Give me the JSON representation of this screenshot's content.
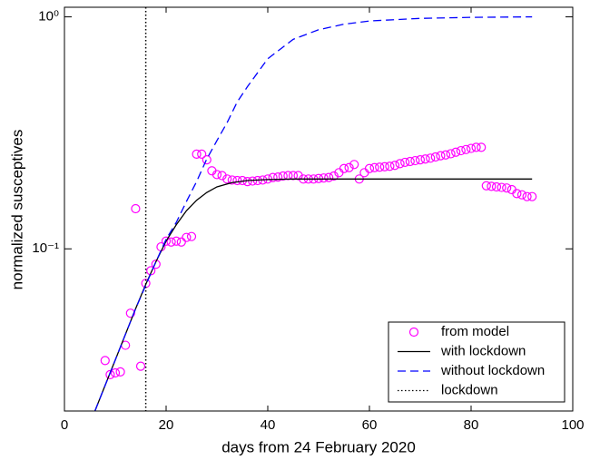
{
  "chart_data": {
    "type": "line",
    "xlabel": "days from 24 February 2020",
    "ylabel": "normalized susceptives",
    "xlim": [
      0,
      100
    ],
    "xticks": [
      0,
      20,
      40,
      60,
      80,
      100
    ],
    "ylim": [
      0.02,
      1.1
    ],
    "log_y": true,
    "yticks": [
      {
        "value": 0.1,
        "label": "10⁻¹"
      },
      {
        "value": 1,
        "label": "10⁰"
      }
    ],
    "legend": "lower right",
    "series": [
      {
        "name": "from model",
        "color": "#ff00ff",
        "marker": "circle",
        "x": [
          8,
          9,
          10,
          11,
          12,
          13,
          14,
          15,
          16,
          17,
          18,
          19,
          20,
          21,
          22,
          23,
          24,
          25,
          26,
          27,
          28,
          29,
          30,
          31,
          32,
          33,
          34,
          35,
          36,
          37,
          38,
          39,
          40,
          41,
          42,
          43,
          44,
          45,
          46,
          47,
          48,
          49,
          50,
          51,
          52,
          53,
          54,
          55,
          56,
          57,
          58,
          59,
          60,
          61,
          62,
          63,
          64,
          65,
          66,
          67,
          68,
          69,
          70,
          71,
          72,
          73,
          74,
          75,
          76,
          77,
          78,
          79,
          80,
          81,
          82,
          83,
          84,
          85,
          86,
          87,
          88,
          89,
          90,
          91,
          92
        ],
        "values": [
          0.033,
          0.0287,
          0.0292,
          0.0295,
          0.0384,
          0.0528,
          0.149,
          0.0312,
          0.071,
          0.0805,
          0.0858,
          0.102,
          0.108,
          0.107,
          0.108,
          0.107,
          0.112,
          0.113,
          0.256,
          0.256,
          0.242,
          0.217,
          0.209,
          0.207,
          0.2,
          0.198,
          0.197,
          0.197,
          0.195,
          0.196,
          0.197,
          0.198,
          0.2,
          0.203,
          0.204,
          0.206,
          0.207,
          0.207,
          0.207,
          0.2,
          0.2,
          0.2,
          0.201,
          0.202,
          0.203,
          0.206,
          0.213,
          0.222,
          0.224,
          0.231,
          0.2,
          0.213,
          0.222,
          0.224,
          0.225,
          0.226,
          0.227,
          0.229,
          0.233,
          0.236,
          0.238,
          0.24,
          0.242,
          0.244,
          0.246,
          0.249,
          0.252,
          0.254,
          0.257,
          0.261,
          0.265,
          0.268,
          0.271,
          0.274,
          0.274,
          0.187,
          0.186,
          0.185,
          0.184,
          0.183,
          0.18,
          0.173,
          0.171,
          0.168,
          0.168
        ]
      },
      {
        "name": "with lockdown",
        "color": "#000000",
        "style": "solid",
        "x": [
          6,
          8,
          10,
          12,
          14,
          16,
          18,
          20,
          22,
          24,
          26,
          28,
          30,
          33,
          36,
          40,
          45,
          50,
          60,
          70,
          80,
          92
        ],
        "values": [
          0.02,
          0.0258,
          0.0332,
          0.0428,
          0.0552,
          0.0703,
          0.088,
          0.108,
          0.127,
          0.146,
          0.162,
          0.175,
          0.185,
          0.193,
          0.197,
          0.199,
          0.2,
          0.2,
          0.2,
          0.2,
          0.2,
          0.2
        ]
      },
      {
        "name": "without lockdown",
        "color": "#0000ff",
        "style": "dashed",
        "x": [
          6,
          10,
          14,
          18,
          20,
          22,
          24,
          26,
          28,
          30,
          32,
          34,
          36,
          40,
          45,
          50,
          55,
          60,
          70,
          80,
          92
        ],
        "values": [
          0.02,
          0.0332,
          0.0552,
          0.088,
          0.11,
          0.13,
          0.16,
          0.195,
          0.244,
          0.293,
          0.35,
          0.43,
          0.5,
          0.66,
          0.8,
          0.88,
          0.93,
          0.96,
          0.985,
          0.995,
          1.0
        ]
      },
      {
        "name": "lockdown",
        "color": "#000000",
        "style": "dotted",
        "xline": 16
      }
    ]
  }
}
